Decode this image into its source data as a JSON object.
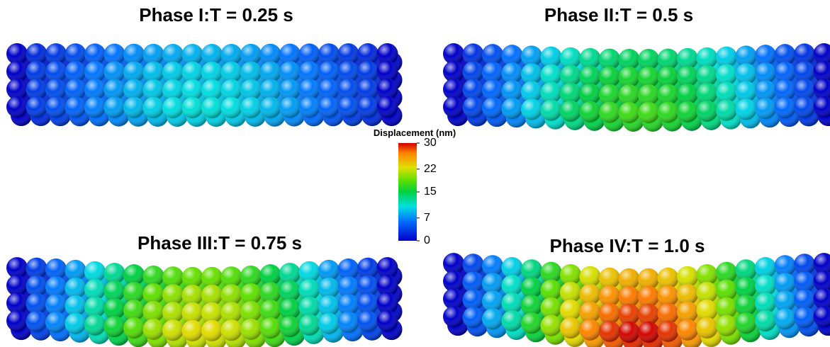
{
  "panels": [
    {
      "title": "Phase I:T = 0.25 s"
    },
    {
      "title": "Phase II:T = 0.5 s"
    },
    {
      "title": "Phase III:T = 0.75 s"
    },
    {
      "title": "Phase IV:T = 1.0 s"
    }
  ],
  "colorbar": {
    "label": "Displacement (nm)",
    "ticks": [
      30,
      22,
      15,
      7,
      0
    ]
  }
}
